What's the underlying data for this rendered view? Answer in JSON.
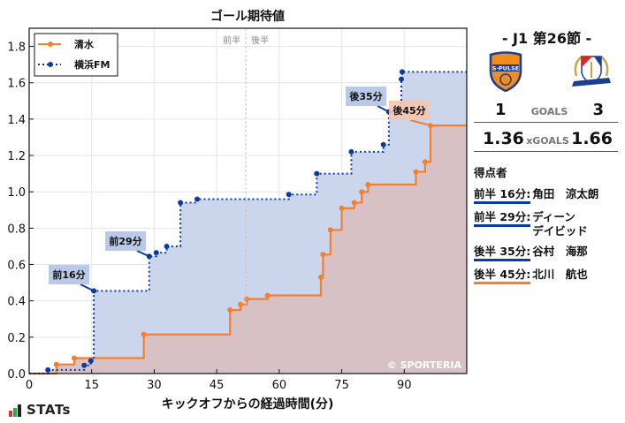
{
  "chart_data": {
    "type": "line",
    "subtype": "step",
    "title": "ゴール期待値",
    "xlabel": "キックオフからの経過時間(分)",
    "ylabel": "",
    "xlim": [
      0,
      105
    ],
    "ylim": [
      0,
      1.9
    ],
    "xticks": [
      0,
      15,
      30,
      45,
      60,
      75,
      90
    ],
    "yticks": [
      0.0,
      0.2,
      0.4,
      0.6,
      0.8,
      1.0,
      1.2,
      1.4,
      1.6,
      1.8
    ],
    "grid": true,
    "legend_position": "upper left",
    "half_time_marker": {
      "x": 52,
      "labels": [
        "前半",
        "後半"
      ]
    },
    "watermark": "© SPORTERIA",
    "series": [
      {
        "name": "清水",
        "color": "#f57f2f",
        "style": "solid",
        "points": [
          [
            0,
            0
          ],
          [
            6.5,
            0.05
          ],
          [
            10.8,
            0.085
          ],
          [
            27.5,
            0.215
          ],
          [
            48.2,
            0.35
          ],
          [
            50.7,
            0.38
          ],
          [
            52.2,
            0.41
          ],
          [
            57.2,
            0.43
          ],
          [
            70.0,
            0.53
          ],
          [
            70.5,
            0.655
          ],
          [
            72.3,
            0.79
          ],
          [
            75.0,
            0.91
          ],
          [
            78.0,
            0.94
          ],
          [
            79.8,
            1.0
          ],
          [
            81.3,
            1.04
          ],
          [
            92.8,
            1.11
          ],
          [
            95.0,
            1.165
          ],
          [
            96.3,
            1.365
          ],
          [
            105,
            1.365
          ]
        ]
      },
      {
        "name": "横浜FM",
        "color": "#0a3ba0",
        "style": "dotted",
        "points": [
          [
            0,
            0
          ],
          [
            4.5,
            0.02
          ],
          [
            13.2,
            0.045
          ],
          [
            14.8,
            0.07
          ],
          [
            15.5,
            0.455
          ],
          [
            28.8,
            0.645
          ],
          [
            30.5,
            0.665
          ],
          [
            33.0,
            0.7
          ],
          [
            36.3,
            0.94
          ],
          [
            40.3,
            0.96
          ],
          [
            62.3,
            0.985
          ],
          [
            69.0,
            1.1
          ],
          [
            77.3,
            1.22
          ],
          [
            85.0,
            1.26
          ],
          [
            86.3,
            1.44
          ],
          [
            89.3,
            1.62
          ],
          [
            89.5,
            1.66
          ],
          [
            105,
            1.66
          ]
        ]
      }
    ],
    "annotations": [
      {
        "label": "前16分",
        "x": 15.5,
        "y": 0.455,
        "team": "横浜FM"
      },
      {
        "label": "前29分",
        "x": 28.8,
        "y": 0.645,
        "team": "横浜FM"
      },
      {
        "label": "後35分",
        "x": 86.3,
        "y": 1.44,
        "team": "横浜FM"
      },
      {
        "label": "後45分",
        "x": 96.3,
        "y": 1.365,
        "team": "清水"
      }
    ]
  },
  "header": {
    "round": "- J1 第26節 -"
  },
  "teams": {
    "home": {
      "name": "清水",
      "crest_text": "S-PULSE",
      "crest_icon": "s-pulse-crest-icon"
    },
    "away": {
      "name": "横浜FM",
      "crest_text": "Yokohama F·Marinos",
      "crest_icon": "marinos-crest-icon"
    }
  },
  "score": {
    "goals_label": "GOALS",
    "home_goals": "1",
    "away_goals": "3",
    "xg_label": "xGOALS",
    "home_xg": "1.36",
    "away_xg": "1.66"
  },
  "scorers": {
    "title": "得点者",
    "items": [
      {
        "time": "前半 16分:",
        "name": "角田　涼太朗",
        "color": "#0a3ba0"
      },
      {
        "time": "前半 29分:",
        "name": "ディーン\nデイビッド",
        "color": "#0a3ba0"
      },
      {
        "time": "後半 35分:",
        "name": "谷村　海那",
        "color": "#0a3ba0"
      },
      {
        "time": "後半 45分:",
        "name": "北川　航也",
        "color": "#f57f2f"
      }
    ]
  },
  "footer": {
    "brand": "STATs"
  },
  "colors": {
    "home": "#f57f2f",
    "away": "#0a3ba0",
    "home_fill": "#d8c0c3",
    "away_fill": "#cbd5ec"
  }
}
